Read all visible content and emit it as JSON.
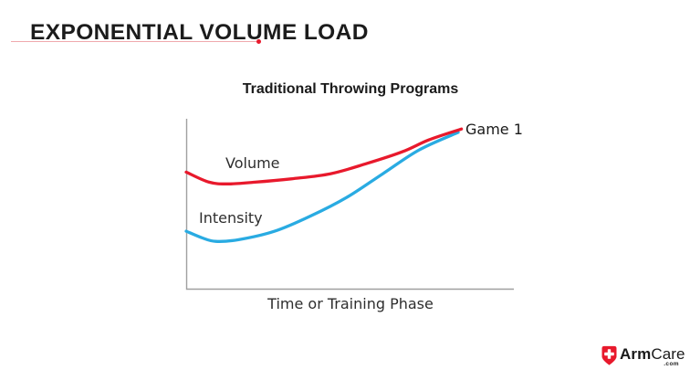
{
  "slide": {
    "title": "EXPONENTIAL VOLUME LOAD"
  },
  "chart_data": {
    "type": "line",
    "title": "Traditional Throwing Programs",
    "xlabel": "Time or Training Phase",
    "ylabel": "",
    "xlim": [
      0,
      1
    ],
    "ylim": [
      0,
      1
    ],
    "grid": false,
    "legend": "inline-labels",
    "axis_color": "#9f9f9f",
    "annotations": [
      {
        "text": "Game 1",
        "x": 0.84,
        "y": 0.945
      }
    ],
    "series": [
      {
        "name": "Volume",
        "color": "#e8192c",
        "x": [
          0,
          0.07,
          0.13,
          0.21,
          0.32,
          0.44,
          0.55,
          0.66,
          0.74,
          0.84
        ],
        "y": [
          0.69,
          0.63,
          0.62,
          0.63,
          0.65,
          0.68,
          0.74,
          0.81,
          0.88,
          0.945
        ]
      },
      {
        "name": "Intensity",
        "color": "#29abe2",
        "x": [
          0,
          0.05,
          0.09,
          0.16,
          0.27,
          0.38,
          0.49,
          0.6,
          0.71,
          0.83
        ],
        "y": [
          0.34,
          0.3,
          0.28,
          0.29,
          0.34,
          0.43,
          0.54,
          0.68,
          0.82,
          0.925
        ]
      }
    ]
  },
  "accents": {
    "underline": "#f0a9ad",
    "underline_dot": "#e8192c",
    "title_color": "#1b1b1b"
  },
  "logo": {
    "arm": "Arm",
    "care": "Care",
    "com": ".com",
    "shield_color": "#e8192c"
  }
}
